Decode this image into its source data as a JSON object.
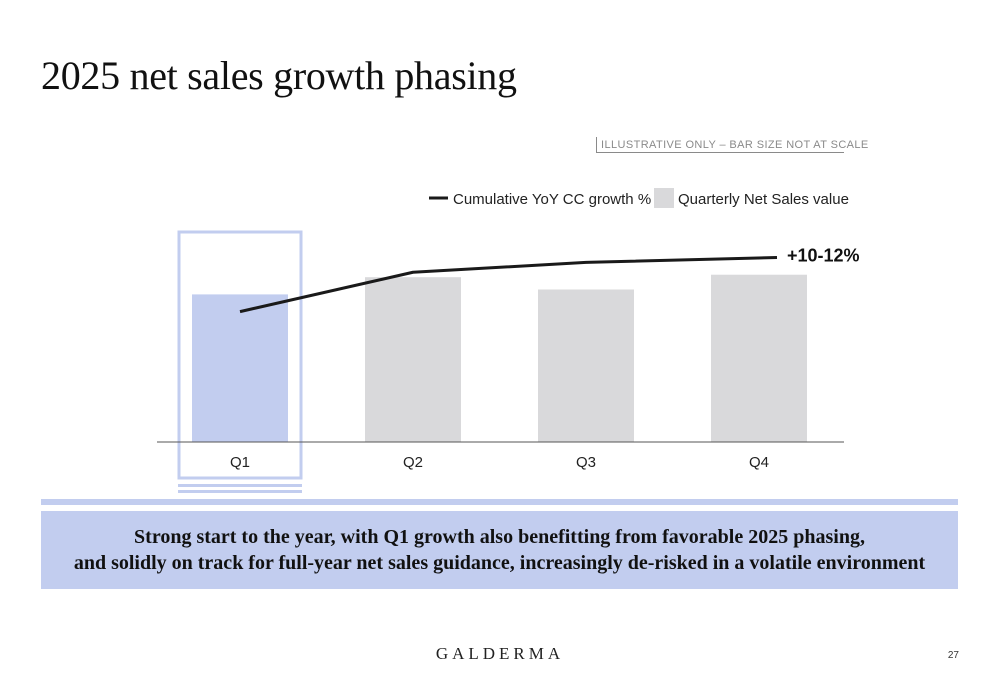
{
  "page": {
    "title": "2025 net sales growth phasing",
    "disclaimer": "ILLUSTRATIVE ONLY – BAR SIZE NOT AT SCALE",
    "takeaway": [
      "Strong start to the year, with Q1 growth also benefitting from favorable 2025 phasing,",
      "and solidly on track for full-year net sales guidance, increasingly de-risked in a volatile environment"
    ],
    "logo": "GALDERMA",
    "page_number": "27"
  },
  "colors": {
    "highlight_bar": "#c2cdef",
    "bar": "#d9d9db",
    "line": "#1a1a1a",
    "highlight_outline": "#c2cdef"
  },
  "chart_data": {
    "type": "bar",
    "categories": [
      "Q1",
      "Q2",
      "Q3",
      "Q4"
    ],
    "series": [
      {
        "name": "Quarterly Net Sales value",
        "type": "bar",
        "values": [
          0.6,
          0.67,
          0.62,
          0.68
        ]
      },
      {
        "name": "Cumulative YoY CC growth %",
        "type": "line",
        "values": [
          0.53,
          0.69,
          0.73,
          0.75
        ]
      }
    ],
    "highlighted_category": "Q1",
    "annotation": "+10-12%",
    "ylim": [
      0,
      1
    ],
    "grid": false,
    "legend": "top-right"
  }
}
